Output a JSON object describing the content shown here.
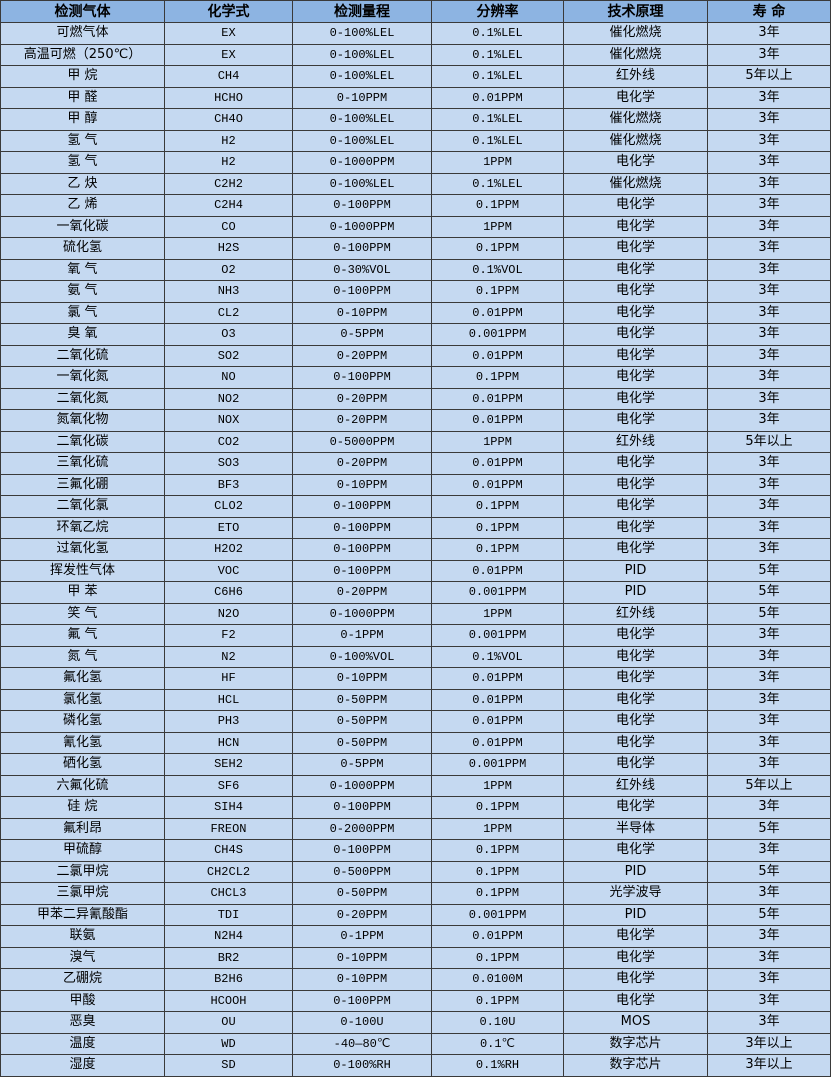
{
  "headers": [
    "检测气体",
    "化学式",
    "检测量程",
    "分辨率",
    "技术原理",
    "寿 命"
  ],
  "rows": [
    [
      "可燃气体",
      "EX",
      "0-100%LEL",
      "0.1%LEL",
      "催化燃烧",
      "3年"
    ],
    [
      "高温可燃（250℃）",
      "EX",
      "0-100%LEL",
      "0.1%LEL",
      "催化燃烧",
      "3年"
    ],
    [
      "甲 烷",
      "CH4",
      "0-100%LEL",
      "0.1%LEL",
      "红外线",
      "5年以上"
    ],
    [
      "甲 醛",
      "HCHO",
      "0-10PPM",
      "0.01PPM",
      "电化学",
      "3年"
    ],
    [
      "甲 醇",
      "CH4O",
      "0-100%LEL",
      "0.1%LEL",
      "催化燃烧",
      "3年"
    ],
    [
      "氢 气",
      "H2",
      "0-100%LEL",
      "0.1%LEL",
      "催化燃烧",
      "3年"
    ],
    [
      "氢 气",
      "H2",
      "0-1000PPM",
      "1PPM",
      "电化学",
      "3年"
    ],
    [
      "乙 炔",
      "C2H2",
      "0-100%LEL",
      "0.1%LEL",
      "催化燃烧",
      "3年"
    ],
    [
      "乙 烯",
      "C2H4",
      "0-100PPM",
      "0.1PPM",
      "电化学",
      "3年"
    ],
    [
      "一氧化碳",
      "CO",
      "0-1000PPM",
      "1PPM",
      "电化学",
      "3年"
    ],
    [
      "硫化氢",
      "H2S",
      "0-100PPM",
      "0.1PPM",
      "电化学",
      "3年"
    ],
    [
      "氧 气",
      "O2",
      "0-30%VOL",
      "0.1%VOL",
      "电化学",
      "3年"
    ],
    [
      "氨 气",
      "NH3",
      "0-100PPM",
      "0.1PPM",
      "电化学",
      "3年"
    ],
    [
      "氯 气",
      "CL2",
      "0-10PPM",
      "0.01PPM",
      "电化学",
      "3年"
    ],
    [
      "臭 氧",
      "O3",
      "0-5PPM",
      "0.001PPM",
      "电化学",
      "3年"
    ],
    [
      "二氧化硫",
      "SO2",
      "0-20PPM",
      "0.01PPM",
      "电化学",
      "3年"
    ],
    [
      "一氧化氮",
      "NO",
      "0-100PPM",
      "0.1PPM",
      "电化学",
      "3年"
    ],
    [
      "二氧化氮",
      "NO2",
      "0-20PPM",
      "0.01PPM",
      "电化学",
      "3年"
    ],
    [
      "氮氧化物",
      "NOX",
      "0-20PPM",
      "0.01PPM",
      "电化学",
      "3年"
    ],
    [
      "二氧化碳",
      "CO2",
      "0-5000PPM",
      "1PPM",
      "红外线",
      "5年以上"
    ],
    [
      "三氧化硫",
      "SO3",
      "0-20PPM",
      "0.01PPM",
      "电化学",
      "3年"
    ],
    [
      "三氟化硼",
      "BF3",
      "0-10PPM",
      "0.01PPM",
      "电化学",
      "3年"
    ],
    [
      "二氧化氯",
      "CLO2",
      "0-100PPM",
      "0.1PPM",
      "电化学",
      "3年"
    ],
    [
      "环氧乙烷",
      "ETO",
      "0-100PPM",
      "0.1PPM",
      "电化学",
      "3年"
    ],
    [
      "过氧化氢",
      "H2O2",
      "0-100PPM",
      "0.1PPM",
      "电化学",
      "3年"
    ],
    [
      "挥发性气体",
      "VOC",
      "0-100PPM",
      "0.01PPM",
      "PID",
      "5年"
    ],
    [
      "甲 苯",
      "C6H6",
      "0-20PPM",
      "0.001PPM",
      "PID",
      "5年"
    ],
    [
      "笑 气",
      "N2O",
      "0-1000PPM",
      "1PPM",
      "红外线",
      "5年"
    ],
    [
      "氟 气",
      "F2",
      "0-1PPM",
      "0.001PPM",
      "电化学",
      "3年"
    ],
    [
      "氮 气",
      "N2",
      "0-100%VOL",
      "0.1%VOL",
      "电化学",
      "3年"
    ],
    [
      "氟化氢",
      "HF",
      "0-10PPM",
      "0.01PPM",
      "电化学",
      "3年"
    ],
    [
      "氯化氢",
      "HCL",
      "0-50PPM",
      "0.01PPM",
      "电化学",
      "3年"
    ],
    [
      "磷化氢",
      "PH3",
      "0-50PPM",
      "0.01PPM",
      "电化学",
      "3年"
    ],
    [
      "氰化氢",
      "HCN",
      "0-50PPM",
      "0.01PPM",
      "电化学",
      "3年"
    ],
    [
      "硒化氢",
      "SEH2",
      "0-5PPM",
      "0.001PPM",
      "电化学",
      "3年"
    ],
    [
      "六氟化硫",
      "SF6",
      "0-1000PPM",
      "1PPM",
      "红外线",
      "5年以上"
    ],
    [
      "硅 烷",
      "SIH4",
      "0-100PPM",
      "0.1PPM",
      "电化学",
      "3年"
    ],
    [
      "氟利昂",
      "FREON",
      "0-2000PPM",
      "1PPM",
      "半导体",
      "5年"
    ],
    [
      "甲硫醇",
      "CH4S",
      "0-100PPM",
      "0.1PPM",
      "电化学",
      "3年"
    ],
    [
      "二氯甲烷",
      "CH2CL2",
      "0-500PPM",
      "0.1PPM",
      "PID",
      "5年"
    ],
    [
      "三氯甲烷",
      "CHCL3",
      "0-50PPM",
      "0.1PPM",
      "光学波导",
      "3年"
    ],
    [
      "甲苯二异氰酸酯",
      "TDI",
      "0-20PPM",
      "0.001PPM",
      "PID",
      "5年"
    ],
    [
      "联氨",
      "N2H4",
      "0-1PPM",
      "0.01PPM",
      "电化学",
      "3年"
    ],
    [
      "溴气",
      "BR2",
      "0-10PPM",
      "0.1PPM",
      "电化学",
      "3年"
    ],
    [
      "乙硼烷",
      "B2H6",
      "0-10PPM",
      "0.0100M",
      "电化学",
      "3年"
    ],
    [
      "甲酸",
      "HCOOH",
      "0-100PPM",
      "0.1PPM",
      "电化学",
      "3年"
    ],
    [
      "恶臭",
      "OU",
      "0-100U",
      "0.10U",
      "MOS",
      "3年"
    ],
    [
      "温度",
      "WD",
      "-40—80℃",
      "0.1℃",
      "数字芯片",
      "3年以上"
    ],
    [
      "湿度",
      "SD",
      "0-100%RH",
      "0.1%RH",
      "数字芯片",
      "3年以上"
    ]
  ]
}
